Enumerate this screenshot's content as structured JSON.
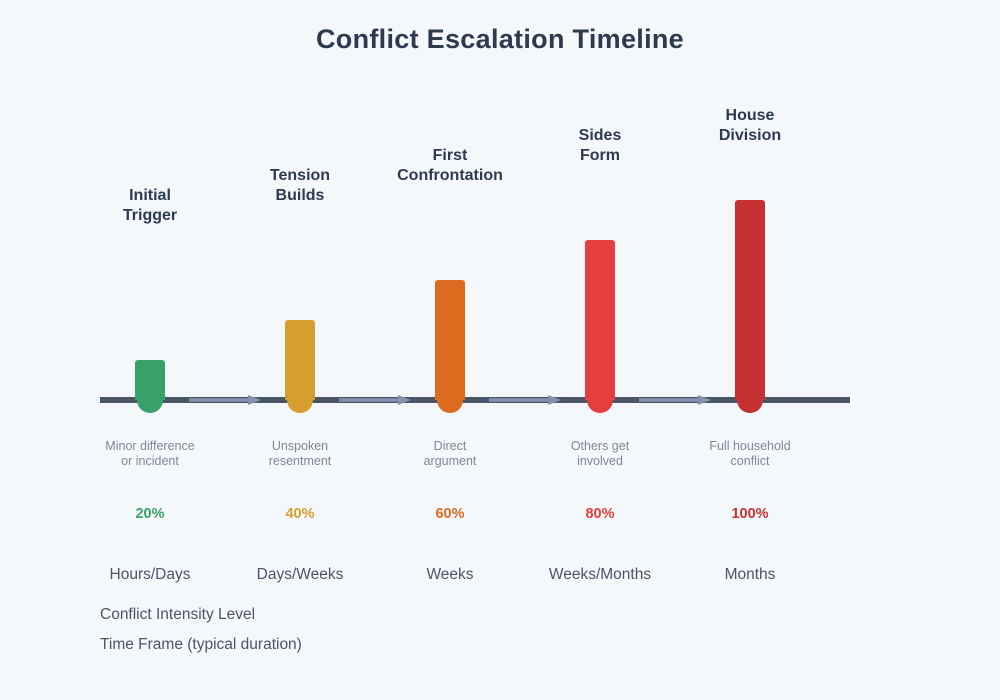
{
  "title": "Conflict Escalation Timeline",
  "footer": {
    "intensity_label": "Conflict Intensity Level",
    "timeframe_label": "Time Frame (typical duration)"
  },
  "colors": {
    "background": "#F5F8FB",
    "title_text": "#2E3A4F",
    "stage_title_text": "#2D3B50",
    "description_text": "#7E8798",
    "timeframe_text": "#4A5568",
    "timeline_line": "#4A5565",
    "arrow": "#8292AE"
  },
  "chart_data": {
    "type": "timeline",
    "title": "Conflict Escalation Timeline",
    "stages": [
      {
        "name": "Initial Trigger",
        "name_display": "Initial\nTrigger",
        "description": "Minor difference or incident",
        "description_display": "Minor difference\nor incident",
        "intensity_pct": 20,
        "intensity_label": "20%",
        "timeframe": "Hours/Days",
        "color": "#38A169"
      },
      {
        "name": "Tension Builds",
        "name_display": "Tension\nBuilds",
        "description": "Unspoken resentment",
        "description_display": "Unspoken\nresentment",
        "intensity_pct": 40,
        "intensity_label": "40%",
        "timeframe": "Days/Weeks",
        "color": "#D69E2E"
      },
      {
        "name": "First Confrontation",
        "name_display": "First\nConfrontation",
        "description": "Direct argument",
        "description_display": "Direct\nargument",
        "intensity_pct": 60,
        "intensity_label": "60%",
        "timeframe": "Weeks",
        "color": "#DD6B20"
      },
      {
        "name": "Sides Form",
        "name_display": "Sides\nForm",
        "description": "Others get involved",
        "description_display": "Others get\ninvolved",
        "intensity_pct": 80,
        "intensity_label": "80%",
        "timeframe": "Weeks/Months",
        "color": "#E53E3E"
      },
      {
        "name": "House Division",
        "name_display": "House\nDivision",
        "description": "Full household conflict",
        "description_display": "Full household\nconflict",
        "intensity_pct": 100,
        "intensity_label": "100%",
        "timeframe": "Months",
        "color": "#C53030"
      }
    ]
  }
}
